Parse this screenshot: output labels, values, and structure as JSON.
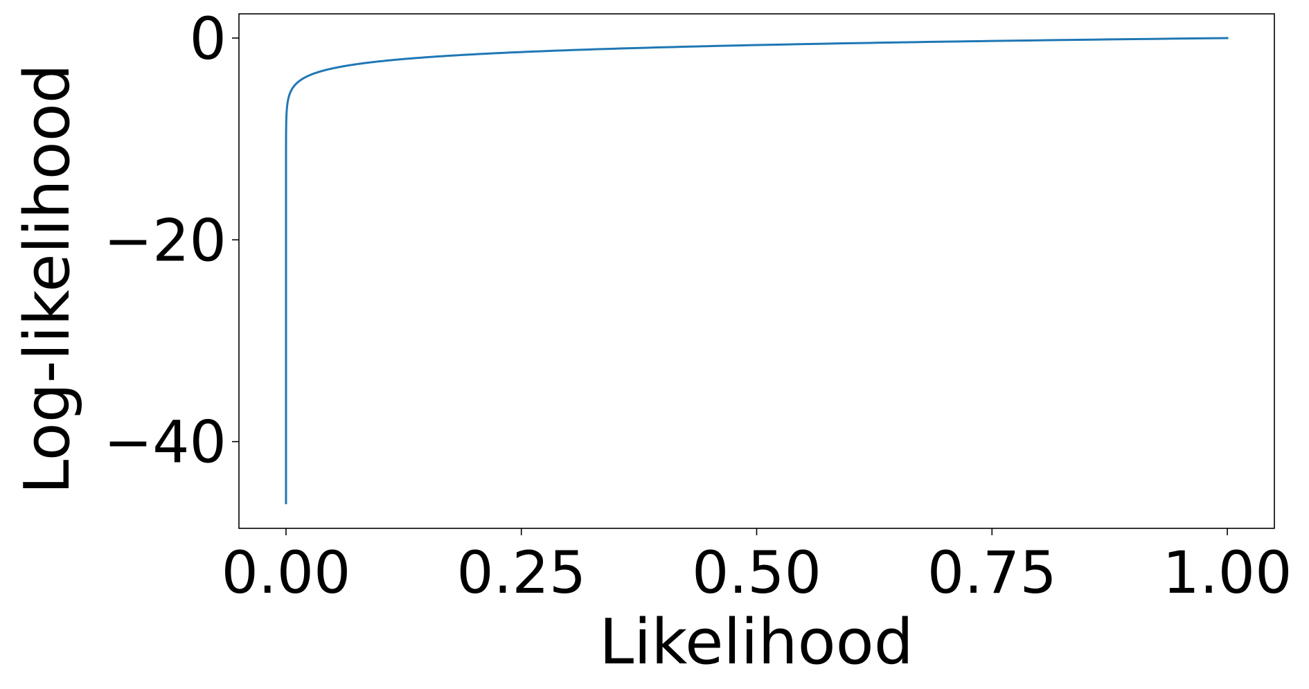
{
  "chart_data": {
    "type": "line",
    "title": "",
    "xlabel": "Likelihood",
    "ylabel": "Log-likelihood",
    "xlim": [
      -0.05,
      1.05
    ],
    "ylim": [
      -48.6,
      2.4
    ],
    "x_ticks": [
      0.0,
      0.25,
      0.5,
      0.75,
      1.0
    ],
    "x_tick_labels": [
      "0.00",
      "0.25",
      "0.50",
      "0.75",
      "1.00"
    ],
    "y_ticks": [
      0,
      -20,
      -40
    ],
    "y_tick_labels": [
      "0",
      "−20",
      "−40"
    ],
    "grid": false,
    "legend": "none",
    "series": [
      {
        "function": "log",
        "color": "#1f77b4",
        "x": [
          1e-22,
          1e-09,
          1e-07,
          1e-06,
          1e-05,
          0.0001,
          0.0005,
          0.001,
          0.002,
          0.003,
          0.005,
          0.007,
          0.01,
          0.015,
          0.02,
          0.03,
          0.05,
          0.075,
          0.1,
          0.15,
          0.2,
          0.25,
          0.3,
          0.4,
          0.5,
          0.6,
          0.7,
          0.75,
          0.8,
          0.9,
          1.0
        ],
        "y": [
          -46.1,
          -20.7,
          -16.1,
          -13.8,
          -11.5,
          -9.2,
          -7.6,
          -6.9,
          -6.2,
          -5.8,
          -5.3,
          -5.0,
          -4.6,
          -4.2,
          -3.9,
          -3.5,
          -3.0,
          -2.6,
          -2.3,
          -1.9,
          -1.6,
          -1.39,
          -1.2,
          -0.92,
          -0.69,
          -0.51,
          -0.36,
          -0.29,
          -0.22,
          -0.11,
          0.0
        ]
      }
    ]
  }
}
